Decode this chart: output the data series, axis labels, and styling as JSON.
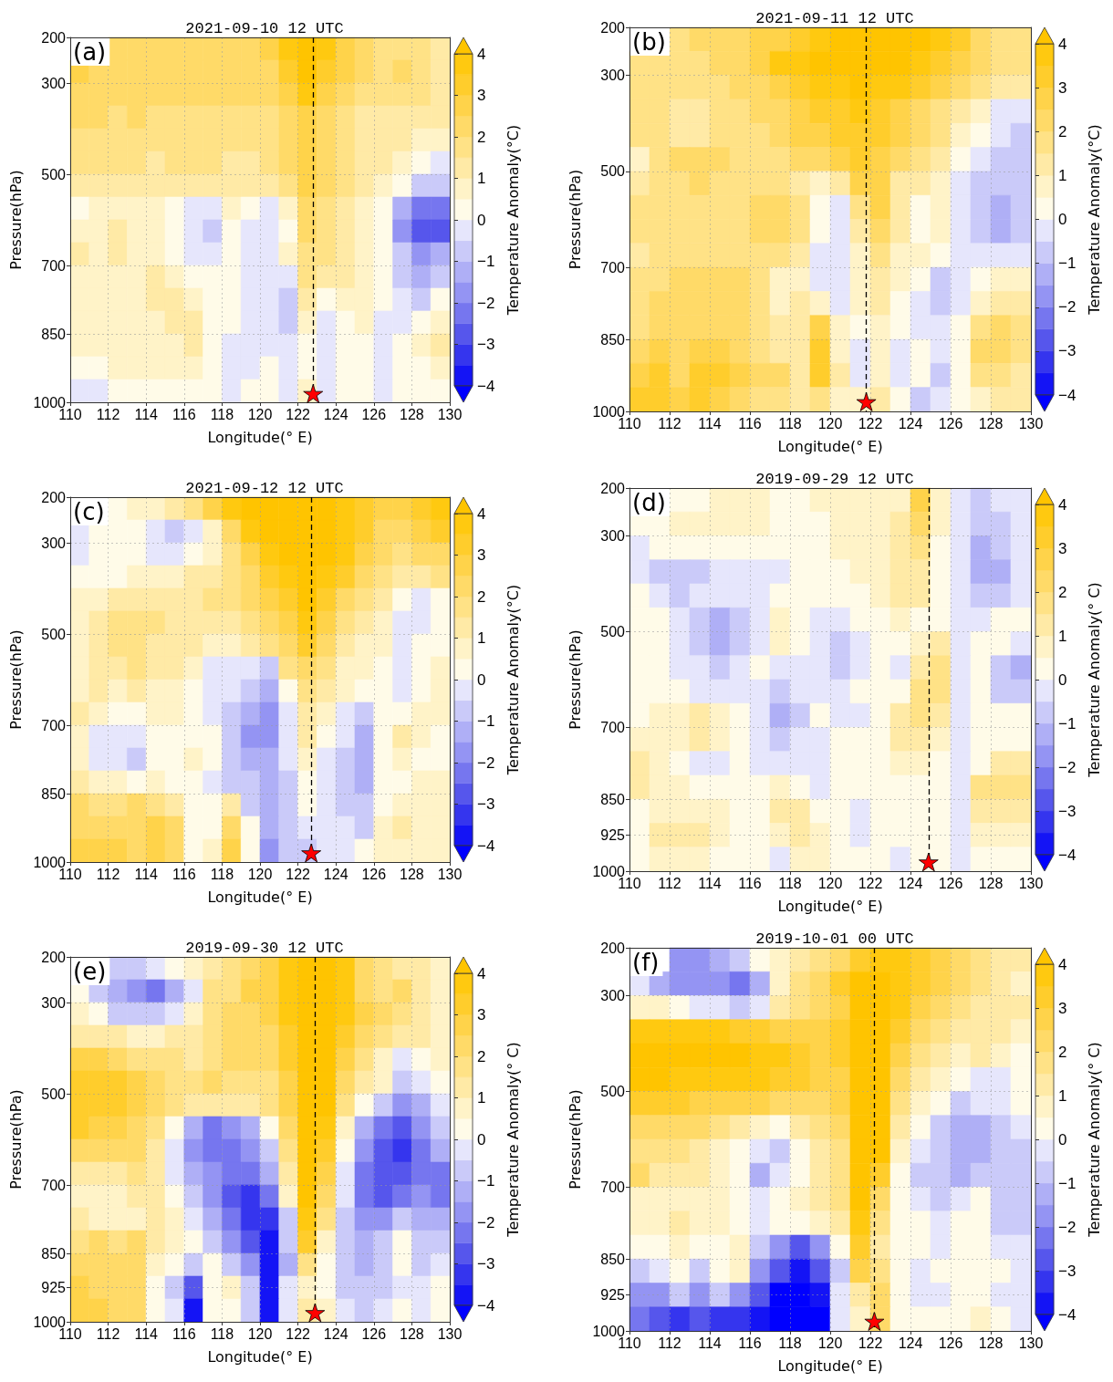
{
  "chart_data": [
    {
      "type": "heatmap",
      "title": "2021-09-10 12 UTC",
      "xlabel": "Longitude(° E)",
      "ylabel": "Pressure(hPa)",
      "clabel": "Temperature Anomaly(°C)",
      "annotations": [
        "(a)"
      ],
      "xlim": [
        110,
        130
      ],
      "xticks": [
        110,
        112,
        114,
        116,
        118,
        120,
        122,
        124,
        126,
        128,
        130
      ],
      "ylim": [
        1000,
        200
      ],
      "yticks": [
        200,
        300,
        500,
        700,
        850,
        1000
      ],
      "clim": [
        -4,
        4
      ],
      "cticks": [
        {
          "value": -4,
          "label": "−4"
        },
        {
          "value": -3,
          "label": "−3"
        },
        {
          "value": -2,
          "label": "−2"
        },
        {
          "value": -1,
          "label": "−1"
        },
        0,
        1,
        2,
        3,
        4
      ],
      "grid": true,
      "marker": "star",
      "cells": [
        [
          null,
          null,
          2.2,
          2.2,
          2.2,
          2.2,
          2.2,
          2.2,
          2.2,
          2.2,
          2.7,
          3.7,
          4.3,
          3.7,
          2.7,
          2.2,
          1.7,
          1.7,
          1.7,
          1.2
        ],
        [
          2.7,
          2.2,
          2.2,
          2.2,
          2.2,
          2.2,
          2.2,
          2.2,
          2.2,
          2.2,
          2.2,
          3.2,
          4.3,
          3.2,
          2.7,
          2.2,
          1.7,
          2.2,
          1.7,
          1.2
        ],
        [
          2.2,
          2.2,
          2.2,
          2.2,
          2.2,
          2.2,
          2.2,
          2.2,
          2.2,
          2.2,
          2.2,
          2.7,
          3.7,
          2.7,
          2.2,
          1.7,
          1.7,
          1.7,
          1.7,
          1.2
        ],
        [
          2.2,
          2.2,
          1.7,
          2.2,
          1.7,
          1.7,
          1.7,
          1.7,
          1.7,
          1.7,
          1.7,
          2.2,
          2.7,
          2.2,
          1.7,
          1.2,
          1.2,
          1.2,
          1.2,
          1.2
        ],
        [
          1.7,
          1.7,
          1.7,
          1.7,
          1.7,
          1.7,
          1.7,
          1.7,
          1.7,
          1.7,
          1.7,
          2.2,
          2.7,
          2.2,
          1.7,
          1.2,
          1.2,
          1.2,
          0.7,
          0.7
        ],
        [
          1.7,
          1.7,
          1.7,
          1.7,
          1.2,
          1.7,
          1.7,
          1.7,
          1.2,
          1.2,
          1.7,
          2.2,
          2.7,
          2.2,
          1.7,
          1.2,
          1.2,
          0.7,
          0.2,
          -0.2
        ],
        [
          1.2,
          1.2,
          1.2,
          1.2,
          1.2,
          1.2,
          1.2,
          1.2,
          1.2,
          1.2,
          1.2,
          1.7,
          2.7,
          2.2,
          1.7,
          1.2,
          0.7,
          0.2,
          -0.7,
          -0.7
        ],
        [
          0.2,
          0.7,
          0.7,
          0.7,
          0.7,
          0.2,
          -0.2,
          -0.2,
          0.7,
          0.2,
          -0.2,
          0.7,
          2.2,
          1.7,
          1.2,
          0.7,
          0.2,
          -1.2,
          -2.2,
          -2.2
        ],
        [
          0.7,
          0.7,
          1.2,
          0.7,
          0.7,
          0.2,
          -0.2,
          -0.7,
          0.2,
          -0.2,
          -0.2,
          0.2,
          2.2,
          1.7,
          1.2,
          0.7,
          0.2,
          -1.7,
          -2.7,
          -2.7
        ],
        [
          1.2,
          0.7,
          1.2,
          0.7,
          0.7,
          0.2,
          -0.2,
          -0.2,
          0.2,
          -0.2,
          -0.2,
          0.7,
          1.7,
          1.7,
          1.2,
          0.7,
          0.2,
          -0.7,
          -1.7,
          -1.2
        ],
        [
          0.7,
          0.7,
          0.7,
          0.7,
          1.2,
          0.7,
          0.2,
          0.2,
          0.2,
          -0.2,
          -0.2,
          -0.2,
          1.7,
          1.2,
          1.2,
          0.7,
          0.2,
          -0.7,
          -1.2,
          -0.7
        ],
        [
          0.7,
          0.7,
          0.7,
          0.7,
          1.2,
          1.2,
          0.7,
          0.2,
          0.2,
          -0.2,
          -0.2,
          -0.7,
          1.2,
          0.2,
          0.7,
          0.7,
          0.2,
          -0.2,
          -0.7,
          0.2
        ],
        [
          0.7,
          0.7,
          0.7,
          0.7,
          0.7,
          1.2,
          1.2,
          0.2,
          0.2,
          -0.2,
          -0.2,
          -0.7,
          0.7,
          -0.2,
          0.2,
          0.7,
          -0.2,
          -0.2,
          0.2,
          0.7
        ],
        [
          0.7,
          0.7,
          0.7,
          0.7,
          0.7,
          0.7,
          1.2,
          0.2,
          -0.2,
          -0.2,
          -0.2,
          -0.2,
          0.2,
          -0.2,
          0.2,
          0.2,
          -0.2,
          0.2,
          0.7,
          1.2
        ],
        [
          0.2,
          0.2,
          0.7,
          0.7,
          0.7,
          0.7,
          0.7,
          0.2,
          -0.2,
          -0.2,
          0.2,
          -0.2,
          0.2,
          -0.2,
          0.2,
          0.2,
          -0.2,
          0.2,
          0.2,
          0.7
        ],
        [
          -0.2,
          -0.2,
          0.2,
          0.2,
          0.2,
          0.2,
          0.2,
          0.2,
          -0.2,
          0.2,
          0.2,
          -0.2,
          0.7,
          -0.2,
          0.2,
          0.2,
          -0.2,
          0.2,
          0.2,
          0.2
        ]
      ],
      "ref_lines": [
        {
          "axis": "x",
          "value": 122.8,
          "color": "#000000",
          "line_style": "dashed"
        }
      ],
      "series": [
        {
          "type": "scatter",
          "x": [
            122.8
          ],
          "values": [
            981
          ],
          "color": "#ff0000"
        }
      ]
    },
    {
      "type": "heatmap",
      "title": "2021-09-11 12 UTC",
      "xlabel": "Longitude(° E)",
      "ylabel": "Pressure(hPa)",
      "clabel": "Temperature Anomaly(°C)",
      "annotations": [
        "(b)"
      ],
      "xlim": [
        110,
        130
      ],
      "xticks": [
        110,
        112,
        114,
        116,
        118,
        120,
        122,
        124,
        126,
        128,
        130
      ],
      "ylim": [
        1000,
        200
      ],
      "yticks": [
        200,
        300,
        500,
        700,
        850,
        1000
      ],
      "clim": [
        -4,
        4
      ],
      "cticks": [
        {
          "value": -4,
          "label": "−4"
        },
        {
          "value": -3,
          "label": "−3"
        },
        {
          "value": -2,
          "label": "−2"
        },
        {
          "value": -1,
          "label": "−1"
        },
        0,
        1,
        2,
        3,
        4
      ],
      "grid": true,
      "marker": "star",
      "cells": [
        [
          null,
          null,
          1.7,
          2.2,
          2.2,
          2.2,
          2.7,
          2.7,
          3.2,
          3.7,
          4.3,
          4.3,
          4.3,
          4.3,
          4.3,
          3.7,
          3.2,
          2.2,
          1.7,
          1.7
        ],
        [
          1.7,
          1.7,
          1.7,
          1.7,
          2.2,
          2.2,
          2.7,
          3.7,
          3.7,
          4.3,
          4.3,
          4.3,
          4.3,
          4.3,
          3.7,
          3.2,
          2.7,
          2.2,
          1.7,
          1.7
        ],
        [
          1.7,
          1.7,
          1.7,
          1.7,
          1.7,
          2.2,
          2.2,
          2.7,
          3.2,
          3.7,
          3.7,
          4.3,
          3.7,
          3.7,
          3.2,
          2.7,
          2.2,
          1.7,
          1.2,
          1.2
        ],
        [
          1.7,
          1.7,
          1.2,
          1.2,
          1.7,
          1.7,
          2.2,
          2.2,
          2.7,
          3.2,
          3.2,
          3.7,
          3.2,
          2.7,
          2.2,
          1.7,
          1.2,
          0.7,
          -0.2,
          -0.2
        ],
        [
          1.7,
          1.7,
          1.2,
          1.2,
          1.7,
          1.7,
          1.7,
          2.2,
          2.7,
          2.7,
          3.2,
          3.2,
          3.2,
          2.7,
          2.2,
          1.7,
          0.7,
          0.2,
          -0.2,
          -0.7
        ],
        [
          0.7,
          1.7,
          2.2,
          2.2,
          2.2,
          1.7,
          1.7,
          1.7,
          2.2,
          2.2,
          2.7,
          3.2,
          2.7,
          2.2,
          1.7,
          1.2,
          0.2,
          -0.2,
          -0.7,
          -0.7
        ],
        [
          1.2,
          1.7,
          1.7,
          2.2,
          1.7,
          1.7,
          1.7,
          1.7,
          1.2,
          0.7,
          1.2,
          2.7,
          2.7,
          1.2,
          1.2,
          0.7,
          -0.2,
          -0.7,
          -0.7,
          -0.7
        ],
        [
          1.7,
          1.7,
          1.7,
          1.7,
          1.7,
          1.7,
          2.2,
          2.2,
          1.7,
          0.2,
          -0.2,
          1.7,
          2.7,
          1.2,
          0.2,
          0.7,
          -0.2,
          -0.7,
          -1.2,
          -0.7
        ],
        [
          1.7,
          1.7,
          1.7,
          1.7,
          1.7,
          1.7,
          2.2,
          2.2,
          1.7,
          0.2,
          -0.2,
          1.2,
          2.2,
          1.2,
          0.2,
          0.7,
          -0.2,
          -0.7,
          -1.2,
          -0.7
        ],
        [
          1.2,
          1.7,
          1.7,
          1.7,
          1.7,
          1.7,
          1.7,
          1.7,
          1.2,
          -0.2,
          -0.2,
          0.7,
          1.7,
          0.7,
          0.7,
          0.2,
          -0.2,
          -0.2,
          -0.2,
          -0.2
        ],
        [
          1.7,
          1.7,
          2.2,
          2.2,
          2.2,
          2.2,
          1.7,
          0.7,
          0.7,
          -0.2,
          -0.2,
          0.7,
          1.2,
          0.7,
          0.2,
          -0.7,
          -0.2,
          0.2,
          0.7,
          0.7
        ],
        [
          1.7,
          2.2,
          2.2,
          2.2,
          2.2,
          2.2,
          1.7,
          0.7,
          1.2,
          0.7,
          -0.2,
          0.7,
          1.2,
          0.2,
          -0.2,
          -0.7,
          -0.2,
          0.7,
          1.2,
          1.2
        ],
        [
          1.7,
          2.2,
          2.2,
          2.2,
          2.2,
          2.2,
          1.7,
          1.2,
          1.2,
          2.7,
          0.7,
          0.2,
          0.7,
          0.2,
          -0.2,
          -0.2,
          0.2,
          1.7,
          2.2,
          1.7
        ],
        [
          2.2,
          2.7,
          2.2,
          2.7,
          2.7,
          2.2,
          1.7,
          1.2,
          1.2,
          3.2,
          0.7,
          -0.2,
          0.7,
          -0.2,
          0.2,
          -0.2,
          0.2,
          2.2,
          2.2,
          1.7
        ],
        [
          2.7,
          3.2,
          2.2,
          3.2,
          3.2,
          2.7,
          2.2,
          2.2,
          1.2,
          3.2,
          1.2,
          -0.2,
          0.7,
          -0.2,
          0.2,
          -0.7,
          0.2,
          1.7,
          1.7,
          1.2
        ],
        [
          3.2,
          3.2,
          2.7,
          3.2,
          2.7,
          2.2,
          1.7,
          1.7,
          1.2,
          1.7,
          0.7,
          0.7,
          1.2,
          0.2,
          -0.7,
          -0.2,
          0.2,
          0.7,
          1.2,
          1.2
        ]
      ],
      "ref_lines": [
        {
          "axis": "x",
          "value": 121.8,
          "color": "#000000",
          "line_style": "dashed"
        }
      ],
      "series": [
        {
          "type": "scatter",
          "x": [
            121.8
          ],
          "values": [
            980
          ],
          "color": "#ff0000"
        }
      ]
    },
    {
      "type": "heatmap",
      "title": "2021-09-12 12 UTC",
      "xlabel": "Longitude(° E)",
      "ylabel": "Pressure(hPa)",
      "clabel": "Temperature Anomaly(°C)",
      "annotations": [
        "(c)"
      ],
      "xlim": [
        110,
        130
      ],
      "xticks": [
        110,
        112,
        114,
        116,
        118,
        120,
        122,
        124,
        126,
        128,
        130
      ],
      "ylim": [
        1000,
        200
      ],
      "yticks": [
        200,
        300,
        500,
        700,
        850,
        1000
      ],
      "clim": [
        -4,
        4
      ],
      "cticks": [
        {
          "value": -4,
          "label": "−4"
        },
        {
          "value": -3,
          "label": "−3"
        },
        {
          "value": -2,
          "label": "−2"
        },
        {
          "value": -1,
          "label": "−1"
        },
        0,
        1,
        2,
        3,
        4
      ],
      "grid": true,
      "marker": "star",
      "cells": [
        [
          null,
          null,
          0.2,
          0.7,
          0.7,
          1.2,
          1.7,
          2.7,
          3.7,
          4.3,
          4.3,
          4.3,
          4.3,
          4.3,
          3.7,
          3.2,
          2.7,
          2.7,
          3.2,
          3.7
        ],
        [
          -0.2,
          0.2,
          0.2,
          0.2,
          -0.2,
          -0.7,
          -0.2,
          0.7,
          2.2,
          3.7,
          4.3,
          4.3,
          4.3,
          4.3,
          3.7,
          3.2,
          2.2,
          2.2,
          2.7,
          3.2
        ],
        [
          -0.2,
          0.2,
          0.2,
          0.2,
          -0.2,
          -0.2,
          0.2,
          0.7,
          1.7,
          2.7,
          3.7,
          4.3,
          4.3,
          4.3,
          3.7,
          2.7,
          2.2,
          1.7,
          2.2,
          2.2
        ],
        [
          0.2,
          0.2,
          0.2,
          0.7,
          0.7,
          0.7,
          1.2,
          1.2,
          1.7,
          2.2,
          3.2,
          3.7,
          4.3,
          3.7,
          3.2,
          2.2,
          1.7,
          1.2,
          1.2,
          1.7
        ],
        [
          0.7,
          0.7,
          1.2,
          1.2,
          1.2,
          1.2,
          1.2,
          1.7,
          1.7,
          2.2,
          2.7,
          3.2,
          4.3,
          3.2,
          2.2,
          1.7,
          1.2,
          0.2,
          -0.2,
          0.2
        ],
        [
          0.7,
          1.2,
          1.7,
          1.7,
          1.7,
          1.2,
          1.2,
          1.2,
          1.2,
          1.7,
          2.2,
          2.7,
          3.7,
          2.7,
          1.7,
          1.2,
          0.7,
          -0.2,
          -0.2,
          0.2
        ],
        [
          0.7,
          1.2,
          1.7,
          1.7,
          1.2,
          1.2,
          1.2,
          0.7,
          0.7,
          1.2,
          1.7,
          2.2,
          3.2,
          2.2,
          1.2,
          0.7,
          0.7,
          -0.2,
          0.2,
          0.2
        ],
        [
          0.7,
          1.2,
          1.2,
          1.7,
          1.2,
          1.2,
          0.7,
          -0.2,
          -0.2,
          -0.2,
          -0.7,
          1.7,
          2.2,
          1.7,
          0.7,
          0.7,
          0.2,
          -0.2,
          0.2,
          0.7
        ],
        [
          0.7,
          1.2,
          0.7,
          1.2,
          0.7,
          0.7,
          0.2,
          -0.2,
          -0.2,
          -0.7,
          -1.2,
          0.2,
          1.7,
          1.2,
          0.7,
          0.2,
          0.2,
          -0.2,
          0.2,
          0.7
        ],
        [
          1.2,
          0.7,
          0.2,
          0.2,
          0.7,
          0.7,
          0.2,
          -0.2,
          -0.7,
          -1.2,
          -1.7,
          -0.2,
          1.2,
          0.7,
          -0.2,
          -0.7,
          0.2,
          0.2,
          0.7,
          0.7
        ],
        [
          0.7,
          -0.2,
          -0.2,
          -0.2,
          0.2,
          0.2,
          0.2,
          0.2,
          -0.7,
          -1.7,
          -1.7,
          -0.2,
          1.2,
          0.2,
          -0.2,
          -1.2,
          0.2,
          1.2,
          0.7,
          0.2
        ],
        [
          0.7,
          -0.2,
          -0.2,
          -0.7,
          0.2,
          0.2,
          0.7,
          0.2,
          -0.7,
          -1.2,
          -1.2,
          -0.2,
          0.7,
          -0.2,
          -0.7,
          -1.2,
          0.2,
          0.7,
          0.2,
          0.2
        ],
        [
          1.2,
          0.7,
          0.7,
          0.2,
          0.7,
          0.2,
          0.2,
          -0.2,
          -0.7,
          -0.7,
          -1.2,
          -0.7,
          0.2,
          -0.2,
          -0.7,
          -1.2,
          0.2,
          0.2,
          0.7,
          0.7
        ],
        [
          2.2,
          1.7,
          1.7,
          2.2,
          1.7,
          1.2,
          0.2,
          0.2,
          1.2,
          -0.7,
          -1.2,
          -0.7,
          0.2,
          -0.2,
          -0.7,
          -0.7,
          0.2,
          0.7,
          0.7,
          0.7
        ],
        [
          2.2,
          2.2,
          2.2,
          2.2,
          2.7,
          2.2,
          0.2,
          0.2,
          2.2,
          0.2,
          -1.2,
          -0.7,
          -0.2,
          -0.2,
          -0.2,
          -0.7,
          0.7,
          1.2,
          0.7,
          0.7
        ],
        [
          2.7,
          2.7,
          2.7,
          2.2,
          2.7,
          2.2,
          0.2,
          0.7,
          2.7,
          0.2,
          -1.7,
          -0.7,
          -0.7,
          -0.2,
          -0.2,
          0.2,
          0.7,
          0.7,
          0.7,
          0.7
        ]
      ],
      "ref_lines": [
        {
          "axis": "x",
          "value": 122.7,
          "color": "#000000",
          "line_style": "dashed"
        }
      ],
      "series": [
        {
          "type": "scatter",
          "x": [
            122.7
          ],
          "values": [
            980
          ],
          "color": "#ff0000"
        }
      ]
    },
    {
      "type": "heatmap",
      "title": "2019-09-29 12 UTC",
      "xlabel": "Longitude(° E)",
      "ylabel": "Pressure(hPa)",
      "clabel": "Temperature Anomaly(° C)",
      "annotations": [
        "(d)"
      ],
      "xlim": [
        110,
        130
      ],
      "xticks": [
        110,
        112,
        114,
        116,
        118,
        120,
        122,
        124,
        126,
        128,
        130
      ],
      "ylim": [
        1000,
        200
      ],
      "yticks": [
        200,
        300,
        500,
        700,
        850,
        925,
        1000
      ],
      "clim": [
        -4,
        4
      ],
      "cticks": [
        {
          "value": -4,
          "label": "−4"
        },
        {
          "value": -3,
          "label": "−3"
        },
        {
          "value": -2,
          "label": "−2"
        },
        {
          "value": -1,
          "label": "−1"
        },
        0,
        1,
        2,
        3,
        4
      ],
      "grid": true,
      "marker": "star",
      "cells": [
        [
          null,
          null,
          0.2,
          0.2,
          0.7,
          0.7,
          0.7,
          0.2,
          0.2,
          0.7,
          0.7,
          0.7,
          0.7,
          0.7,
          2.7,
          0.7,
          -0.2,
          -0.7,
          -0.2,
          -0.2
        ],
        [
          0.2,
          0.2,
          0.7,
          0.7,
          0.7,
          0.7,
          0.7,
          0.2,
          0.2,
          0.2,
          0.7,
          0.7,
          0.7,
          1.2,
          2.2,
          0.7,
          -0.2,
          -0.7,
          -0.7,
          -0.2
        ],
        [
          -0.2,
          0.2,
          0.2,
          0.2,
          0.2,
          0.2,
          0.2,
          0.2,
          0.2,
          0.2,
          0.7,
          0.7,
          0.7,
          1.2,
          1.7,
          0.2,
          -0.2,
          -1.2,
          -0.7,
          -0.2
        ],
        [
          -0.2,
          -0.7,
          -0.7,
          -0.7,
          -0.2,
          -0.2,
          -0.2,
          -0.2,
          0.2,
          0.2,
          0.2,
          0.7,
          0.7,
          1.2,
          1.2,
          0.2,
          -0.2,
          -1.2,
          -1.2,
          -0.2
        ],
        [
          0.2,
          -0.2,
          -0.7,
          -0.2,
          -0.2,
          -0.2,
          -0.2,
          0.2,
          0.2,
          0.2,
          0.2,
          0.2,
          0.7,
          1.2,
          1.2,
          0.2,
          -0.2,
          -0.7,
          -0.7,
          -0.2
        ],
        [
          0.2,
          0.2,
          -0.2,
          -0.7,
          -1.2,
          -0.7,
          -0.2,
          0.7,
          0.2,
          -0.2,
          -0.2,
          0.2,
          0.2,
          0.7,
          0.2,
          0.2,
          -0.2,
          -0.2,
          0.2,
          0.2
        ],
        [
          0.2,
          0.2,
          -0.2,
          -0.7,
          -1.2,
          -0.7,
          -0.2,
          0.7,
          0.2,
          -0.2,
          -0.7,
          -0.2,
          0.2,
          0.2,
          0.7,
          1.2,
          -0.2,
          0.2,
          0.2,
          -0.2
        ],
        [
          0.2,
          0.2,
          -0.2,
          -0.2,
          -0.7,
          -0.2,
          0.2,
          -0.2,
          -0.2,
          -0.2,
          -0.7,
          -0.2,
          0.2,
          -0.2,
          1.2,
          1.7,
          -0.2,
          0.2,
          -0.7,
          -1.2
        ],
        [
          0.2,
          0.2,
          0.2,
          -0.2,
          -0.2,
          -0.2,
          -0.2,
          -0.7,
          -0.2,
          -0.2,
          -0.2,
          0.2,
          0.2,
          0.2,
          1.7,
          1.7,
          -0.2,
          0.2,
          -0.7,
          -0.7
        ],
        [
          0.2,
          0.7,
          0.7,
          1.2,
          0.7,
          0.2,
          -0.2,
          -1.2,
          -0.7,
          0.2,
          -0.2,
          -0.2,
          0.2,
          1.2,
          1.7,
          1.2,
          -0.2,
          0.2,
          0.2,
          0.2
        ],
        [
          0.7,
          0.7,
          0.7,
          1.2,
          0.7,
          0.2,
          -0.2,
          -0.7,
          -0.2,
          -0.2,
          0.2,
          0.2,
          0.2,
          1.2,
          1.2,
          0.7,
          -0.2,
          0.2,
          0.2,
          0.2
        ],
        [
          1.2,
          0.7,
          0.2,
          -0.2,
          -0.2,
          0.2,
          -0.2,
          -0.2,
          -0.2,
          -0.2,
          0.2,
          0.2,
          0.2,
          0.7,
          0.7,
          0.2,
          -0.2,
          0.2,
          1.2,
          1.2
        ],
        [
          1.2,
          0.7,
          0.7,
          0.2,
          0.2,
          0.2,
          0.2,
          0.7,
          0.2,
          -0.2,
          0.2,
          0.2,
          0.2,
          0.2,
          0.2,
          0.2,
          -0.2,
          1.7,
          1.7,
          1.7
        ],
        [
          0.2,
          0.7,
          0.7,
          0.7,
          0.7,
          0.2,
          0.2,
          1.2,
          1.2,
          0.2,
          0.2,
          -0.2,
          0.2,
          0.2,
          0.2,
          0.2,
          -0.2,
          1.2,
          1.2,
          1.2
        ],
        [
          0.2,
          1.2,
          1.2,
          1.2,
          0.7,
          0.2,
          0.2,
          0.7,
          1.2,
          0.7,
          0.2,
          -0.2,
          0.2,
          0.2,
          0.2,
          0.2,
          -0.2,
          0.7,
          0.7,
          0.7
        ],
        [
          0.2,
          0.7,
          0.7,
          0.7,
          0.2,
          0.2,
          0.2,
          -0.2,
          0.7,
          0.7,
          0.2,
          0.2,
          0.2,
          -0.2,
          0.2,
          0.2,
          -0.2,
          0.2,
          0.2,
          0.2
        ]
      ],
      "ref_lines": [
        {
          "axis": "x",
          "value": 124.9,
          "color": "#000000",
          "line_style": "dashed"
        }
      ],
      "series": [
        {
          "type": "scatter",
          "x": [
            124.9
          ],
          "values": [
            981
          ],
          "color": "#ff0000"
        }
      ]
    },
    {
      "type": "heatmap",
      "title": "2019-09-30 12 UTC",
      "xlabel": "Longitude(° E)",
      "ylabel": "Pressure(hPa)",
      "clabel": "Temperature Anomaly(° C)",
      "annotations": [
        "(e)"
      ],
      "xlim": [
        110,
        130
      ],
      "xticks": [
        110,
        112,
        114,
        116,
        118,
        120,
        122,
        124,
        126,
        128,
        130
      ],
      "ylim": [
        1000,
        200
      ],
      "yticks": [
        200,
        300,
        500,
        700,
        850,
        925,
        1000
      ],
      "clim": [
        -4,
        4
      ],
      "cticks": [
        {
          "value": -4,
          "label": "−4"
        },
        {
          "value": -3,
          "label": "−3"
        },
        {
          "value": -2,
          "label": "−2"
        },
        {
          "value": -1,
          "label": "−1"
        },
        0,
        1,
        2,
        3,
        4
      ],
      "grid": true,
      "marker": "star",
      "cells": [
        [
          null,
          null,
          -0.7,
          -0.7,
          -0.2,
          0.2,
          0.7,
          1.2,
          1.7,
          2.2,
          2.7,
          3.7,
          4.3,
          4.3,
          3.7,
          2.2,
          1.7,
          1.2,
          1.2,
          0.7
        ],
        [
          0.2,
          -0.7,
          -1.2,
          -1.7,
          -2.2,
          -1.2,
          -0.2,
          1.7,
          1.7,
          2.7,
          2.7,
          3.7,
          4.3,
          4.3,
          3.7,
          2.2,
          1.7,
          2.2,
          1.2,
          0.7
        ],
        [
          0.7,
          0.2,
          -0.7,
          -0.7,
          -0.7,
          -0.2,
          0.7,
          1.7,
          2.2,
          2.2,
          2.7,
          3.7,
          4.3,
          4.3,
          3.7,
          2.7,
          2.2,
          1.7,
          1.2,
          0.7
        ],
        [
          1.2,
          1.2,
          1.2,
          0.7,
          0.7,
          1.2,
          1.2,
          1.7,
          2.2,
          2.2,
          2.2,
          3.2,
          4.3,
          4.3,
          3.2,
          2.2,
          1.7,
          1.2,
          1.2,
          0.7
        ],
        [
          2.7,
          2.7,
          2.2,
          1.7,
          1.7,
          1.7,
          1.2,
          1.7,
          2.2,
          2.2,
          2.2,
          3.2,
          4.3,
          4.3,
          2.7,
          1.7,
          0.7,
          -0.2,
          0.2,
          0.7
        ],
        [
          3.2,
          3.2,
          3.2,
          2.7,
          2.2,
          1.7,
          1.7,
          2.2,
          1.7,
          1.7,
          1.7,
          2.7,
          4.3,
          4.3,
          2.2,
          1.2,
          0.7,
          -0.7,
          -0.2,
          0.2
        ],
        [
          3.2,
          3.2,
          3.2,
          2.7,
          2.2,
          1.7,
          1.2,
          1.2,
          1.2,
          1.2,
          1.7,
          2.7,
          4.3,
          4.3,
          1.7,
          0.2,
          -0.7,
          -1.7,
          -1.2,
          -0.2
        ],
        [
          3.2,
          2.7,
          2.7,
          2.2,
          1.7,
          0.2,
          -1.2,
          -2.2,
          -1.7,
          -1.2,
          0.2,
          2.2,
          4.3,
          3.7,
          0.7,
          -1.2,
          -2.2,
          -2.7,
          -1.7,
          -0.7
        ],
        [
          2.2,
          2.2,
          2.2,
          2.2,
          1.2,
          -0.2,
          -1.7,
          -2.2,
          -2.2,
          -1.7,
          -0.7,
          1.7,
          4.3,
          3.2,
          0.2,
          -1.7,
          -2.7,
          -3.2,
          -2.2,
          -1.2
        ],
        [
          1.2,
          1.2,
          1.2,
          1.7,
          1.2,
          -0.2,
          -1.2,
          -1.7,
          -2.2,
          -2.2,
          -1.2,
          1.2,
          4.3,
          2.7,
          -0.2,
          -2.2,
          -2.7,
          -2.7,
          -2.2,
          -2.2
        ],
        [
          0.7,
          0.7,
          0.7,
          1.2,
          1.2,
          0.2,
          -0.7,
          -1.7,
          -2.7,
          -3.2,
          -2.2,
          0.7,
          4.3,
          2.2,
          -0.2,
          -2.2,
          -2.7,
          -2.2,
          -1.7,
          -2.2
        ],
        [
          1.2,
          0.7,
          0.7,
          0.7,
          1.2,
          0.7,
          -0.2,
          -1.2,
          -2.2,
          -3.2,
          -3.2,
          -0.7,
          3.7,
          1.7,
          -0.7,
          -1.7,
          -1.7,
          -0.7,
          -1.2,
          -1.2
        ],
        [
          1.7,
          2.2,
          1.7,
          2.2,
          1.2,
          0.7,
          0.2,
          -0.7,
          -1.7,
          -2.7,
          -3.7,
          -0.7,
          3.2,
          0.7,
          -0.7,
          -1.2,
          -0.7,
          0.2,
          -0.7,
          -0.7
        ],
        [
          2.2,
          2.2,
          2.2,
          2.2,
          0.7,
          0.2,
          -0.7,
          0.2,
          -0.7,
          -1.7,
          -3.7,
          -1.2,
          1.7,
          0.2,
          -0.7,
          -1.2,
          -0.7,
          0.2,
          -0.7,
          -0.2
        ],
        [
          2.7,
          2.2,
          2.2,
          2.2,
          0.2,
          -0.7,
          -2.7,
          0.2,
          0.7,
          -0.7,
          -3.7,
          -0.2,
          0.7,
          0.2,
          -0.7,
          -0.7,
          -0.7,
          -0.2,
          -0.2,
          0.2
        ],
        [
          2.7,
          2.7,
          2.2,
          2.2,
          0.2,
          -0.2,
          -3.7,
          0.2,
          0.2,
          -0.7,
          -3.7,
          -0.2,
          1.2,
          0.7,
          -0.2,
          -0.7,
          -0.2,
          0.2,
          -0.2,
          0.2
        ]
      ],
      "ref_lines": [
        {
          "axis": "x",
          "value": 122.9,
          "color": "#000000",
          "line_style": "dashed"
        }
      ],
      "series": [
        {
          "type": "scatter",
          "x": [
            122.9
          ],
          "values": [
            980
          ],
          "color": "#ff0000"
        }
      ]
    },
    {
      "type": "heatmap",
      "title": "2019-10-01 00 UTC",
      "xlabel": "Longitude(° E)",
      "ylabel": "Pressure(hPa)",
      "clabel": "Temperature Anomaly(° C)",
      "annotations": [
        "(f)"
      ],
      "xlim": [
        110,
        130
      ],
      "xticks": [
        110,
        112,
        114,
        116,
        118,
        120,
        122,
        124,
        126,
        128,
        130
      ],
      "ylim": [
        1000,
        200
      ],
      "yticks": [
        200,
        300,
        500,
        700,
        850,
        925,
        1000
      ],
      "clim": [
        -4,
        4
      ],
      "cticks": [
        {
          "value": -4,
          "label": "−4"
        },
        {
          "value": -3,
          "label": "−3"
        },
        {
          "value": -2,
          "label": "−2"
        },
        {
          "value": -1,
          "label": "−1"
        },
        0,
        1,
        2,
        3,
        4
      ],
      "grid": true,
      "marker": "star",
      "cells": [
        [
          null,
          null,
          -1.7,
          -1.7,
          -1.2,
          -0.7,
          0.2,
          0.7,
          1.2,
          1.7,
          2.2,
          3.2,
          3.7,
          3.7,
          3.2,
          2.7,
          2.2,
          1.7,
          1.2,
          1.2
        ],
        [
          -0.2,
          -1.2,
          -1.7,
          -1.7,
          -1.7,
          -2.2,
          -1.2,
          0.7,
          1.7,
          2.2,
          3.2,
          4.3,
          4.3,
          3.7,
          3.2,
          2.7,
          2.2,
          1.7,
          1.2,
          0.7
        ],
        [
          0.7,
          0.7,
          0.2,
          -0.2,
          -0.2,
          -0.7,
          -0.2,
          1.2,
          1.7,
          2.2,
          2.7,
          4.3,
          4.3,
          3.7,
          2.7,
          2.2,
          1.7,
          1.2,
          1.2,
          1.2
        ],
        [
          3.7,
          3.7,
          3.7,
          3.7,
          3.7,
          3.2,
          3.2,
          2.7,
          2.7,
          2.7,
          3.2,
          4.3,
          4.3,
          3.2,
          2.2,
          1.7,
          1.2,
          1.2,
          1.2,
          0.7
        ],
        [
          4.3,
          4.3,
          4.3,
          4.3,
          4.3,
          4.3,
          3.7,
          3.7,
          3.2,
          2.7,
          3.2,
          4.3,
          4.3,
          2.7,
          1.7,
          1.2,
          0.7,
          1.2,
          0.7,
          0.2
        ],
        [
          4.3,
          4.3,
          3.7,
          3.7,
          3.7,
          3.7,
          3.7,
          3.2,
          3.2,
          2.7,
          2.7,
          4.3,
          4.3,
          2.2,
          1.2,
          0.7,
          0.2,
          -0.2,
          -0.2,
          0.2
        ],
        [
          3.2,
          3.2,
          3.2,
          2.7,
          2.7,
          2.7,
          2.7,
          2.2,
          2.2,
          2.2,
          2.7,
          4.3,
          4.3,
          1.7,
          0.7,
          0.2,
          -0.7,
          -0.2,
          -0.2,
          0.2
        ],
        [
          2.2,
          2.2,
          2.2,
          2.2,
          1.7,
          1.2,
          0.7,
          0.2,
          1.2,
          1.7,
          2.2,
          4.3,
          4.3,
          1.2,
          0.2,
          -0.7,
          -1.2,
          -1.2,
          -0.7,
          -0.2
        ],
        [
          1.7,
          1.7,
          1.7,
          1.2,
          0.7,
          0.2,
          -0.2,
          -0.7,
          0.2,
          1.2,
          1.7,
          4.3,
          4.3,
          0.7,
          -0.2,
          -0.7,
          -1.2,
          -1.2,
          -0.7,
          -0.7
        ],
        [
          2.2,
          1.2,
          1.2,
          1.2,
          0.7,
          0.2,
          -1.2,
          -0.2,
          0.2,
          1.2,
          1.7,
          4.3,
          3.2,
          0.2,
          -0.7,
          -0.7,
          -1.2,
          -0.7,
          -0.7,
          -0.7
        ],
        [
          0.7,
          0.7,
          0.7,
          0.7,
          0.7,
          0.2,
          -0.2,
          0.2,
          0.7,
          1.2,
          1.7,
          4.3,
          2.2,
          0.2,
          -0.2,
          -0.7,
          -0.2,
          0.2,
          -0.7,
          -0.7
        ],
        [
          0.7,
          0.7,
          1.2,
          0.7,
          0.7,
          0.2,
          -0.2,
          0.2,
          0.2,
          0.7,
          1.2,
          3.7,
          1.7,
          0.2,
          0.2,
          -0.2,
          0.2,
          0.2,
          -0.7,
          -0.7
        ],
        [
          0.2,
          0.2,
          0.7,
          0.2,
          0.2,
          0.7,
          -0.7,
          -1.7,
          -2.7,
          -1.7,
          0.2,
          3.2,
          1.2,
          0.2,
          0.2,
          -0.2,
          0.2,
          0.2,
          -0.2,
          -0.2
        ],
        [
          -0.7,
          -0.2,
          0.2,
          -0.7,
          0.2,
          0.7,
          -1.7,
          -2.7,
          -3.7,
          -2.7,
          -0.7,
          2.7,
          1.7,
          0.2,
          -0.2,
          0.2,
          0.2,
          0.2,
          0.2,
          -0.2
        ],
        [
          -1.7,
          -1.7,
          -0.7,
          -1.7,
          -0.7,
          -1.7,
          -2.7,
          -4.3,
          -4.3,
          -3.7,
          -0.2,
          1.2,
          2.2,
          0.2,
          -0.2,
          -0.2,
          0.2,
          0.2,
          -0.2,
          -0.2
        ],
        [
          -2.2,
          -2.7,
          -3.2,
          -2.7,
          -3.2,
          -3.2,
          -3.7,
          -4.3,
          -4.3,
          -4.3,
          -0.2,
          0.7,
          2.2,
          0.2,
          0.2,
          0.2,
          0.2,
          0.7,
          0.2,
          -0.2
        ]
      ],
      "ref_lines": [
        {
          "axis": "x",
          "value": 122.2,
          "color": "#000000",
          "line_style": "dashed"
        }
      ],
      "series": [
        {
          "type": "scatter",
          "x": [
            122.2
          ],
          "values": [
            980
          ],
          "color": "#ff0000"
        }
      ]
    }
  ]
}
